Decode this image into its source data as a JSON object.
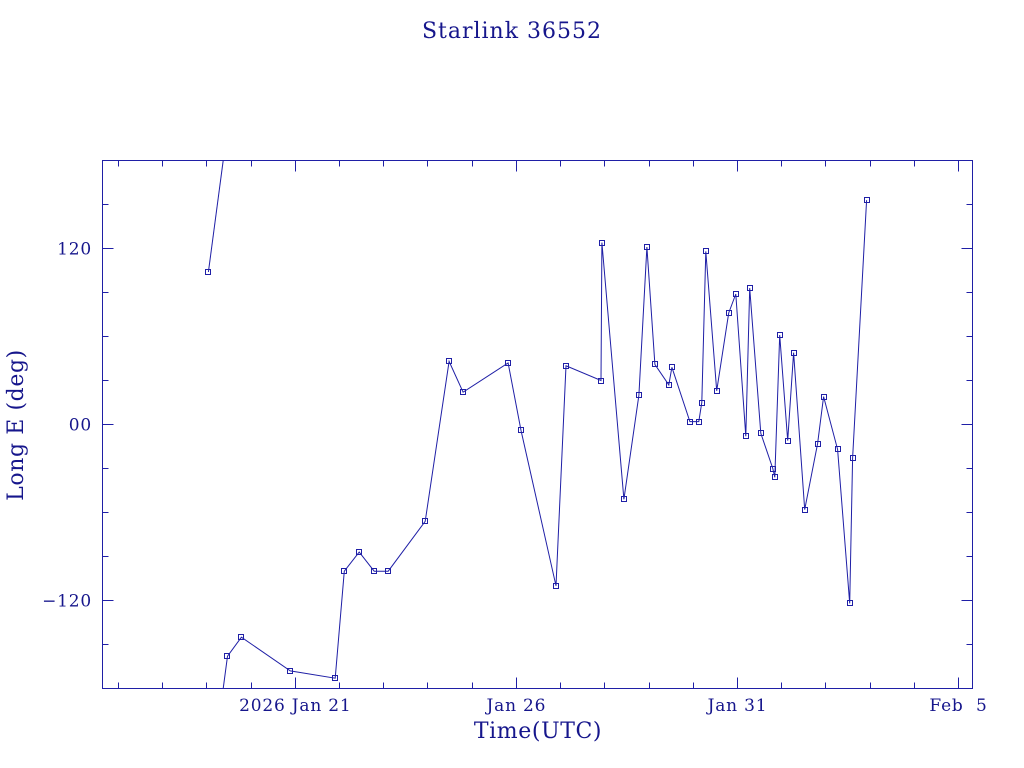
{
  "chart_data": {
    "type": "line",
    "title": "Starlink 36552",
    "xlabel": "Time(UTC)",
    "ylabel": "Long E (deg)",
    "xlim": [
      "2026-01-16 15:20",
      "2026-02-05 07:35"
    ],
    "ylim": [
      -180,
      180
    ],
    "grid": false,
    "x_ticks": [
      {
        "value": "2026-01-21 00:00",
        "label": "2026 Jan 21"
      },
      {
        "value": "2026-01-26 00:00",
        "label": "Jan 26"
      },
      {
        "value": "2026-01-31 00:00",
        "label": "Jan 31"
      },
      {
        "value": "2026-02-05 00:00",
        "label": "Feb  5"
      }
    ],
    "y_ticks": [
      {
        "value": 120,
        "label": "120"
      },
      {
        "value": 0,
        "label": "00"
      },
      {
        "value": -120,
        "label": "−120"
      }
    ],
    "x": [
      "2026-01-19 00:50",
      "2026-01-19 11:10",
      "2026-01-19 18:45",
      "2026-01-20 21:15",
      "2026-01-21 21:40",
      "2026-01-22 02:35",
      "2026-01-22 10:40",
      "2026-01-22 18:50",
      "2026-01-23 02:25",
      "2026-01-23 22:30",
      "2026-01-24 11:30",
      "2026-01-24 19:05",
      "2026-01-25 19:30",
      "2026-01-26 02:30",
      "2026-01-26 21:30",
      "2026-01-27 02:55",
      "2026-01-27 21:55",
      "2026-01-27 22:25",
      "2026-01-28 10:20",
      "2026-01-28 18:30",
      "2026-01-28 22:50",
      "2026-01-29 03:10",
      "2026-01-29 10:45",
      "2026-01-29 12:25",
      "2026-01-29 22:10",
      "2026-01-30 03:00",
      "2026-01-30 04:40",
      "2026-01-30 06:50",
      "2026-01-30 12:45",
      "2026-01-30 19:15",
      "2026-01-30 23:05",
      "2026-01-31 04:30",
      "2026-01-31 06:40",
      "2026-01-31 12:40",
      "2026-01-31 19:10",
      "2026-01-31 20:15",
      "2026-01-31 22:55",
      "2026-02-01 03:15",
      "2026-02-01 06:30",
      "2026-02-01 12:30",
      "2026-02-01 19:30",
      "2026-02-01 22:45",
      "2026-02-02 06:20",
      "2026-02-02 12:55",
      "2026-02-02 14:30",
      "2026-02-02 22:05"
    ],
    "y": [
      104,
      -158,
      -145,
      -168,
      -173,
      -100,
      -87,
      -100,
      -100,
      -66,
      43,
      22,
      42,
      -4,
      -110,
      40,
      30,
      124,
      -51,
      20,
      121,
      41,
      27,
      39,
      2,
      2,
      15,
      118,
      23,
      76,
      89,
      -8,
      93,
      -6,
      -30,
      -36,
      61,
      -11,
      49,
      -58,
      -13,
      19,
      -17,
      -122,
      -23,
      153
    ]
  },
  "colors": {
    "text": "#16168c",
    "axis": "#1f1fa6",
    "series": "#1f1fa6",
    "background": "#ffffff"
  }
}
